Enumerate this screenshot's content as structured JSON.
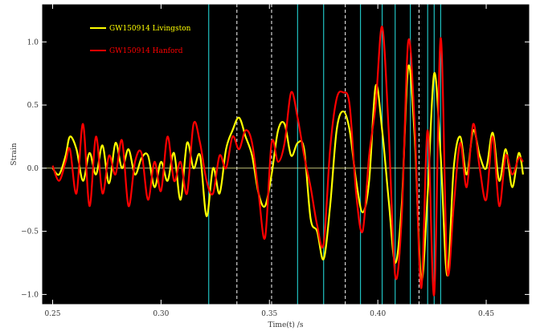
{
  "chart_data": {
    "type": "line",
    "xlabel": "Time(t) /s",
    "ylabel": "Strain",
    "xlim": [
      0.245,
      0.47
    ],
    "ylim": [
      -1.08,
      1.3
    ],
    "x_ticks": [
      0.25,
      0.3,
      0.35,
      0.4,
      0.45
    ],
    "x_tick_labels": [
      "0.25",
      "0.30",
      "0.35",
      "0.40",
      "0.45"
    ],
    "y_ticks": [
      -1.0,
      -0.5,
      0.0,
      0.5,
      1.0
    ],
    "y_tick_labels": [
      "−1.0",
      "−0.5",
      "0.0",
      "0.5",
      "1.0"
    ],
    "grid": false,
    "legend_placement": "top-left",
    "background": "#000000",
    "axis_color": "#ffffff",
    "zero_line_color": "#dddd88",
    "series": [
      {
        "name": "GW150914 Livingston",
        "color": "#ffff00",
        "x": [
          0.25,
          0.253,
          0.256,
          0.258,
          0.261,
          0.264,
          0.267,
          0.27,
          0.273,
          0.276,
          0.279,
          0.282,
          0.285,
          0.288,
          0.291,
          0.294,
          0.297,
          0.3,
          0.303,
          0.306,
          0.309,
          0.312,
          0.315,
          0.318,
          0.321,
          0.324,
          0.327,
          0.33,
          0.333,
          0.336,
          0.339,
          0.342,
          0.345,
          0.348,
          0.351,
          0.354,
          0.357,
          0.36,
          0.363,
          0.366,
          0.369,
          0.372,
          0.375,
          0.378,
          0.381,
          0.384,
          0.387,
          0.39,
          0.393,
          0.396,
          0.399,
          0.402,
          0.405,
          0.408,
          0.411,
          0.414,
          0.417,
          0.42,
          0.423,
          0.426,
          0.429,
          0.432,
          0.435,
          0.438,
          0.441,
          0.444,
          0.447,
          0.45,
          0.453,
          0.456,
          0.459,
          0.462,
          0.465,
          0.467
        ],
        "values": [
          0.0,
          -0.05,
          0.1,
          0.25,
          0.15,
          -0.1,
          0.12,
          -0.05,
          0.18,
          -0.12,
          0.2,
          0.0,
          0.15,
          -0.05,
          0.08,
          0.1,
          -0.15,
          0.05,
          -0.1,
          0.12,
          -0.25,
          0.2,
          0.0,
          0.1,
          -0.38,
          0.0,
          -0.2,
          0.15,
          0.3,
          0.4,
          0.25,
          0.1,
          -0.2,
          -0.3,
          -0.05,
          0.3,
          0.35,
          0.1,
          0.2,
          0.15,
          -0.4,
          -0.5,
          -0.72,
          -0.3,
          0.3,
          0.45,
          0.3,
          -0.1,
          -0.35,
          -0.1,
          0.65,
          0.3,
          -0.25,
          -0.75,
          -0.3,
          0.8,
          0.25,
          -0.88,
          -0.2,
          0.75,
          0.1,
          -0.85,
          0.0,
          0.25,
          -0.05,
          0.3,
          0.1,
          0.0,
          0.28,
          -0.1,
          0.15,
          -0.15,
          0.12,
          -0.05
        ]
      },
      {
        "name": "GW150914 Hanford",
        "color": "#ff0000",
        "x": [
          0.25,
          0.253,
          0.256,
          0.258,
          0.261,
          0.264,
          0.267,
          0.27,
          0.273,
          0.276,
          0.279,
          0.282,
          0.285,
          0.288,
          0.291,
          0.294,
          0.297,
          0.3,
          0.303,
          0.306,
          0.309,
          0.312,
          0.315,
          0.318,
          0.321,
          0.324,
          0.327,
          0.33,
          0.333,
          0.336,
          0.339,
          0.342,
          0.345,
          0.348,
          0.351,
          0.354,
          0.357,
          0.36,
          0.363,
          0.366,
          0.369,
          0.372,
          0.375,
          0.378,
          0.381,
          0.384,
          0.387,
          0.39,
          0.393,
          0.396,
          0.399,
          0.402,
          0.405,
          0.408,
          0.411,
          0.414,
          0.417,
          0.42,
          0.423,
          0.426,
          0.429,
          0.432,
          0.435,
          0.438,
          0.441,
          0.444,
          0.447,
          0.45,
          0.453,
          0.456,
          0.459,
          0.462,
          0.465,
          0.467
        ],
        "values": [
          0.02,
          -0.1,
          0.05,
          0.15,
          -0.2,
          0.35,
          -0.3,
          0.25,
          -0.2,
          0.1,
          -0.05,
          0.22,
          -0.3,
          0.05,
          0.12,
          -0.25,
          0.05,
          -0.18,
          0.25,
          -0.1,
          0.05,
          -0.2,
          0.35,
          0.2,
          -0.1,
          -0.2,
          0.1,
          0.0,
          0.25,
          0.15,
          0.3,
          0.2,
          -0.2,
          -0.55,
          0.2,
          0.05,
          0.2,
          0.6,
          0.4,
          0.1,
          -0.15,
          -0.45,
          -0.6,
          0.15,
          0.55,
          0.6,
          0.5,
          -0.2,
          -0.5,
          0.1,
          0.5,
          1.12,
          0.3,
          -0.85,
          -0.4,
          1.0,
          0.35,
          -0.95,
          0.3,
          -1.0,
          1.03,
          -0.8,
          -0.3,
          0.2,
          -0.15,
          0.35,
          0.0,
          -0.25,
          0.25,
          -0.3,
          0.1,
          -0.05,
          0.08,
          0.05
        ]
      }
    ],
    "vertical_markers_cyan": [
      0.322,
      0.363,
      0.375,
      0.392,
      0.402,
      0.408,
      0.415,
      0.423,
      0.426,
      0.429
    ],
    "vertical_markers_dashed": [
      0.335,
      0.351,
      0.385,
      0.419
    ]
  }
}
